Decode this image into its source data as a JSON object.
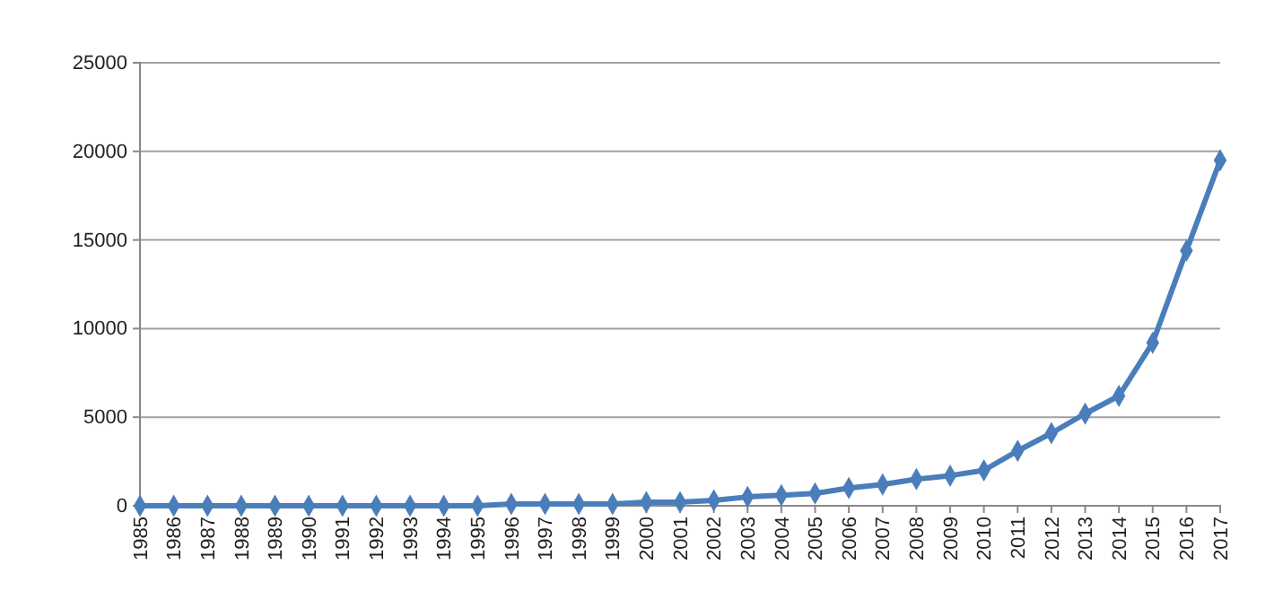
{
  "chart_data": {
    "type": "line",
    "categories": [
      "1985",
      "1986",
      "1987",
      "1988",
      "1989",
      "1990",
      "1991",
      "1992",
      "1993",
      "1994",
      "1995",
      "1996",
      "1997",
      "1998",
      "1999",
      "2000",
      "2001",
      "2002",
      "2003",
      "2004",
      "2005",
      "2006",
      "2007",
      "2008",
      "2009",
      "2010",
      "2011",
      "2012",
      "2013",
      "2014",
      "2015",
      "2016",
      "2017"
    ],
    "series": [
      {
        "color": "#4a7ebb",
        "values": [
          0,
          0,
          0,
          0,
          0,
          0,
          0,
          0,
          0,
          0,
          0,
          100,
          100,
          100,
          100,
          200,
          200,
          300,
          500,
          600,
          700,
          1000,
          1200,
          1500,
          1700,
          2000,
          3100,
          4100,
          5200,
          6200,
          9200,
          14400,
          19500
        ]
      }
    ],
    "ylim": [
      0,
      25000
    ],
    "yticks": [
      0,
      5000,
      10000,
      15000,
      20000,
      25000
    ],
    "grid": "y",
    "marker": "diamond",
    "line_style": "solid"
  }
}
